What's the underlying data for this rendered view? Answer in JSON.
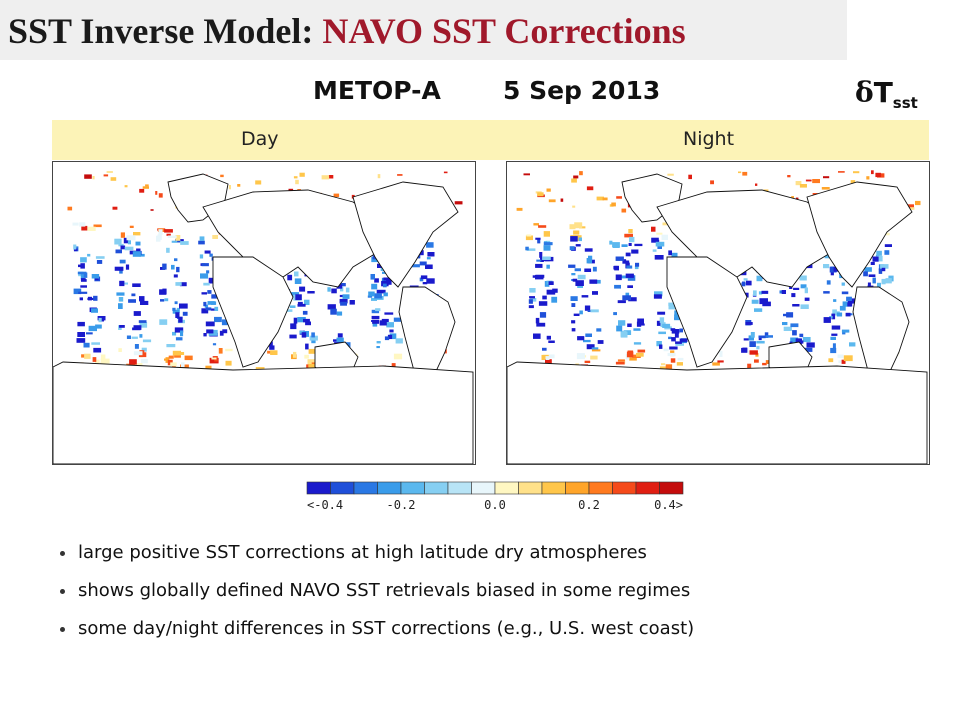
{
  "title": {
    "part1": "SST Inverse Model:",
    "part2": "NAVO SST Corrections"
  },
  "satellite": "METOP-A",
  "date": "5 Sep 2013",
  "variable": {
    "symbol": "δ",
    "letter": "T",
    "subscript": "sst"
  },
  "panels": {
    "day": "Day",
    "night": "Night"
  },
  "colorbar": {
    "ticks": [
      "<-0.4",
      "-0.2",
      "0.0",
      "0.2",
      "0.4>"
    ],
    "colors": [
      "#1a1acc",
      "#1f4fd9",
      "#2a78e4",
      "#3a9cea",
      "#5bb8ee",
      "#86cff2",
      "#b8e4f6",
      "#e8f6fb",
      "#fff7c2",
      "#ffe18a",
      "#ffc64a",
      "#ffa52a",
      "#ff7a1f",
      "#f54a1a",
      "#e01e12",
      "#c40c0c"
    ]
  },
  "bullets": [
    "large positive SST corrections at high latitude dry atmospheres",
    "shows globally defined NAVO SST retrievals biased in some regimes",
    "some day/night differences in SST corrections (e.g., U.S. west coast)"
  ]
}
